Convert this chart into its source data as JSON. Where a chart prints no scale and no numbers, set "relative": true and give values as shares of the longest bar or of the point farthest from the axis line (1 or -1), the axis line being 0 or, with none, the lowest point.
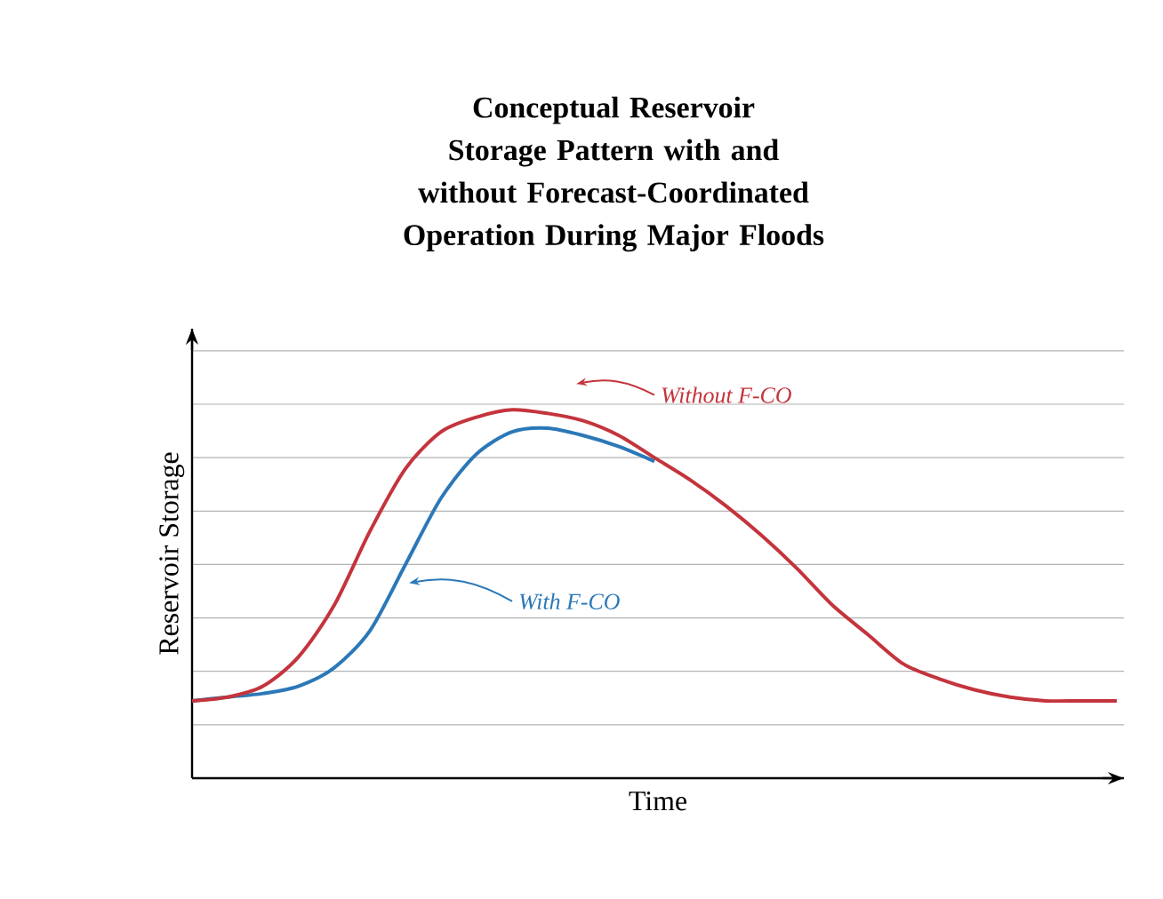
{
  "chart_data": {
    "type": "line",
    "title": "Conceptual Reservoir Storage Pattern with and without Forecast-Coordinated Operation During Major Floods",
    "xlabel": "Time",
    "ylabel": "Reservoir Storage",
    "relative": true,
    "grid": "y",
    "legend": "top",
    "marker": "none",
    "line_style": "solid",
    "categories": [
      null,
      null,
      null,
      null,
      null,
      null,
      null,
      null,
      null,
      null,
      null,
      null,
      null,
      null,
      null,
      null,
      null,
      null,
      null,
      null,
      null,
      null,
      null,
      null,
      null,
      null,
      null
    ],
    "series": [
      {
        "name": "Without F-CO",
        "color": "#c4343c",
        "values": [
          0.21,
          0.22,
          0.25,
          0.33,
          0.47,
          0.67,
          0.84,
          0.94,
          0.98,
          1.0,
          0.99,
          0.97,
          0.93,
          0.87,
          0.81,
          0.74,
          0.66,
          0.57,
          0.47,
          0.39,
          0.31,
          0.27,
          0.24,
          0.22,
          0.21,
          0.21,
          0.21
        ]
      },
      {
        "name": "With F-CO",
        "color": "#2b78b8",
        "values": [
          0.21,
          0.22,
          0.23,
          0.25,
          0.3,
          0.4,
          0.58,
          0.76,
          0.88,
          0.94,
          0.95,
          0.93,
          0.9,
          0.86,
          null,
          null,
          null,
          null,
          null,
          null,
          null,
          null,
          null,
          null,
          null,
          null,
          null
        ]
      }
    ]
  }
}
